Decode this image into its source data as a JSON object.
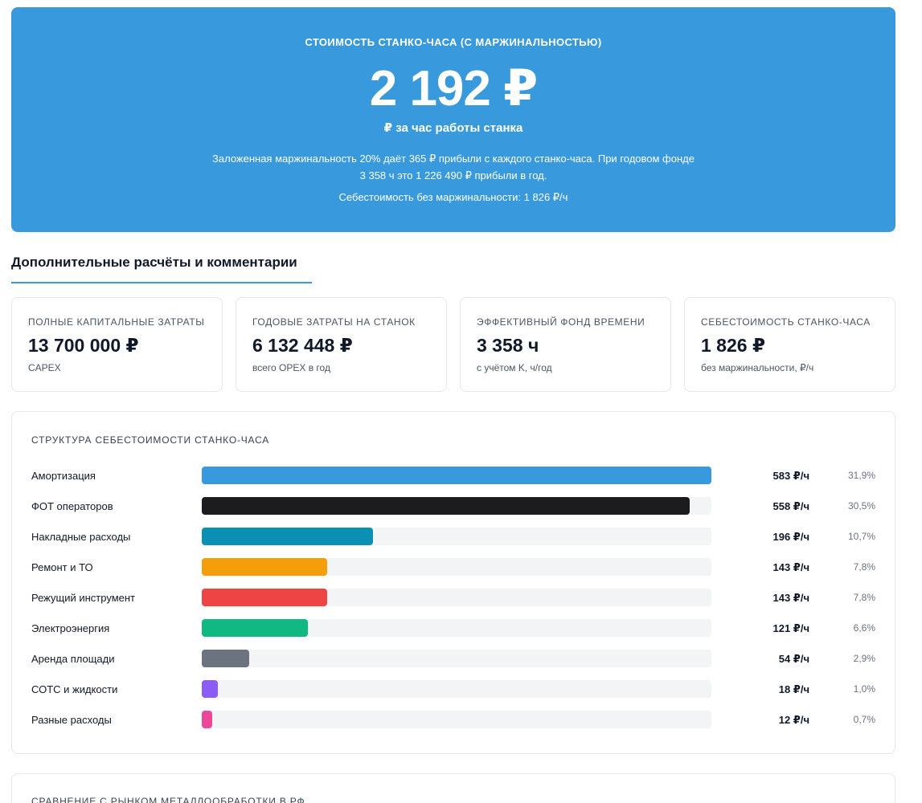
{
  "hero": {
    "title": "Стоимость станко-часа (с маржинальностью)",
    "value": "2 192 ₽",
    "subtitle": "₽ за час работы станка",
    "description": "Заложенная маржинальность 20% даёт 365 ₽ прибыли с каждого станко-часа. При годовом фонде 3 358 ч это 1 226 490 ₽ прибыли в год.",
    "note": "Себестоимость без маржинальности: 1 826 ₽/ч"
  },
  "section": {
    "title": "Дополнительные расчёты и комментарии"
  },
  "stats": [
    {
      "label": "Полные капитальные затраты",
      "value": "13 700 000 ₽",
      "sub": "CAPEX"
    },
    {
      "label": "Годовые затраты на станок",
      "value": "6 132 448 ₽",
      "sub": "всего OPEX в год"
    },
    {
      "label": "Эффективный фонд времени",
      "value": "3 358 ч",
      "sub": "с учётом K, ч/год"
    },
    {
      "label": "Себестоимость станко-часа",
      "value": "1 826 ₽",
      "sub": "без маржинальности, ₽/ч"
    }
  ],
  "structure": {
    "title": "Структура себестоимости станко-часа",
    "max": 583,
    "items": [
      {
        "label": "Амортизация",
        "amount": 583,
        "value": "583 ₽/ч",
        "pct": "31,9%",
        "color": "#3899dc"
      },
      {
        "label": "ФОТ операторов",
        "amount": 558,
        "value": "558 ₽/ч",
        "pct": "30,5%",
        "color": "#1c1c1e"
      },
      {
        "label": "Накладные расходы",
        "amount": 196,
        "value": "196 ₽/ч",
        "pct": "10,7%",
        "color": "#0b8fb3"
      },
      {
        "label": "Ремонт и ТО",
        "amount": 143,
        "value": "143 ₽/ч",
        "pct": "7,8%",
        "color": "#f59e0b"
      },
      {
        "label": "Режущий инструмент",
        "amount": 143,
        "value": "143 ₽/ч",
        "pct": "7,8%",
        "color": "#ef4444"
      },
      {
        "label": "Электроэнергия",
        "amount": 121,
        "value": "121 ₽/ч",
        "pct": "6,6%",
        "color": "#10b981"
      },
      {
        "label": "Аренда площади",
        "amount": 54,
        "value": "54 ₽/ч",
        "pct": "2,9%",
        "color": "#6b7280"
      },
      {
        "label": "СОТС и жидкости",
        "amount": 18,
        "value": "18 ₽/ч",
        "pct": "1,0%",
        "color": "#8b5cf6"
      },
      {
        "label": "Разные расходы",
        "amount": 12,
        "value": "12 ₽/ч",
        "pct": "0,7%",
        "color": "#ec4899"
      }
    ]
  },
  "comparison": {
    "title": "Сравнение с рынком металлообработки в РФ"
  }
}
